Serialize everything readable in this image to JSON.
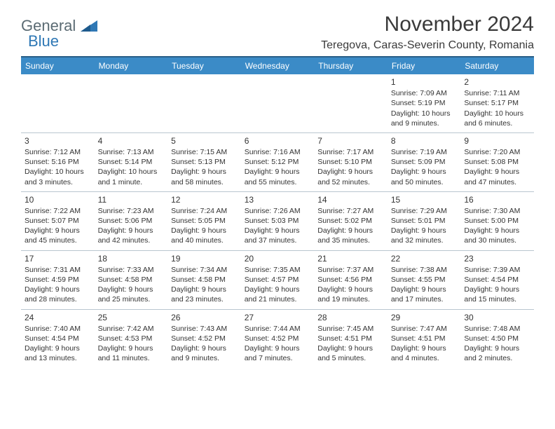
{
  "logo": {
    "general": "General",
    "blue": "Blue"
  },
  "title": "November 2024",
  "location": "Teregova, Caras-Severin County, Romania",
  "colors": {
    "header_bg": "#3b8bc7",
    "header_border_top": "#2a5f88",
    "cell_border": "#b9c6cf",
    "text": "#333333",
    "logo_gray": "#5b6b73",
    "logo_blue": "#2f78b5"
  },
  "day_labels": [
    "Sunday",
    "Monday",
    "Tuesday",
    "Wednesday",
    "Thursday",
    "Friday",
    "Saturday"
  ],
  "weeks": [
    [
      null,
      null,
      null,
      null,
      null,
      {
        "n": "1",
        "sr": "Sunrise: 7:09 AM",
        "ss": "Sunset: 5:19 PM",
        "dl1": "Daylight: 10 hours",
        "dl2": "and 9 minutes."
      },
      {
        "n": "2",
        "sr": "Sunrise: 7:11 AM",
        "ss": "Sunset: 5:17 PM",
        "dl1": "Daylight: 10 hours",
        "dl2": "and 6 minutes."
      }
    ],
    [
      {
        "n": "3",
        "sr": "Sunrise: 7:12 AM",
        "ss": "Sunset: 5:16 PM",
        "dl1": "Daylight: 10 hours",
        "dl2": "and 3 minutes."
      },
      {
        "n": "4",
        "sr": "Sunrise: 7:13 AM",
        "ss": "Sunset: 5:14 PM",
        "dl1": "Daylight: 10 hours",
        "dl2": "and 1 minute."
      },
      {
        "n": "5",
        "sr": "Sunrise: 7:15 AM",
        "ss": "Sunset: 5:13 PM",
        "dl1": "Daylight: 9 hours",
        "dl2": "and 58 minutes."
      },
      {
        "n": "6",
        "sr": "Sunrise: 7:16 AM",
        "ss": "Sunset: 5:12 PM",
        "dl1": "Daylight: 9 hours",
        "dl2": "and 55 minutes."
      },
      {
        "n": "7",
        "sr": "Sunrise: 7:17 AM",
        "ss": "Sunset: 5:10 PM",
        "dl1": "Daylight: 9 hours",
        "dl2": "and 52 minutes."
      },
      {
        "n": "8",
        "sr": "Sunrise: 7:19 AM",
        "ss": "Sunset: 5:09 PM",
        "dl1": "Daylight: 9 hours",
        "dl2": "and 50 minutes."
      },
      {
        "n": "9",
        "sr": "Sunrise: 7:20 AM",
        "ss": "Sunset: 5:08 PM",
        "dl1": "Daylight: 9 hours",
        "dl2": "and 47 minutes."
      }
    ],
    [
      {
        "n": "10",
        "sr": "Sunrise: 7:22 AM",
        "ss": "Sunset: 5:07 PM",
        "dl1": "Daylight: 9 hours",
        "dl2": "and 45 minutes."
      },
      {
        "n": "11",
        "sr": "Sunrise: 7:23 AM",
        "ss": "Sunset: 5:06 PM",
        "dl1": "Daylight: 9 hours",
        "dl2": "and 42 minutes."
      },
      {
        "n": "12",
        "sr": "Sunrise: 7:24 AM",
        "ss": "Sunset: 5:05 PM",
        "dl1": "Daylight: 9 hours",
        "dl2": "and 40 minutes."
      },
      {
        "n": "13",
        "sr": "Sunrise: 7:26 AM",
        "ss": "Sunset: 5:03 PM",
        "dl1": "Daylight: 9 hours",
        "dl2": "and 37 minutes."
      },
      {
        "n": "14",
        "sr": "Sunrise: 7:27 AM",
        "ss": "Sunset: 5:02 PM",
        "dl1": "Daylight: 9 hours",
        "dl2": "and 35 minutes."
      },
      {
        "n": "15",
        "sr": "Sunrise: 7:29 AM",
        "ss": "Sunset: 5:01 PM",
        "dl1": "Daylight: 9 hours",
        "dl2": "and 32 minutes."
      },
      {
        "n": "16",
        "sr": "Sunrise: 7:30 AM",
        "ss": "Sunset: 5:00 PM",
        "dl1": "Daylight: 9 hours",
        "dl2": "and 30 minutes."
      }
    ],
    [
      {
        "n": "17",
        "sr": "Sunrise: 7:31 AM",
        "ss": "Sunset: 4:59 PM",
        "dl1": "Daylight: 9 hours",
        "dl2": "and 28 minutes."
      },
      {
        "n": "18",
        "sr": "Sunrise: 7:33 AM",
        "ss": "Sunset: 4:58 PM",
        "dl1": "Daylight: 9 hours",
        "dl2": "and 25 minutes."
      },
      {
        "n": "19",
        "sr": "Sunrise: 7:34 AM",
        "ss": "Sunset: 4:58 PM",
        "dl1": "Daylight: 9 hours",
        "dl2": "and 23 minutes."
      },
      {
        "n": "20",
        "sr": "Sunrise: 7:35 AM",
        "ss": "Sunset: 4:57 PM",
        "dl1": "Daylight: 9 hours",
        "dl2": "and 21 minutes."
      },
      {
        "n": "21",
        "sr": "Sunrise: 7:37 AM",
        "ss": "Sunset: 4:56 PM",
        "dl1": "Daylight: 9 hours",
        "dl2": "and 19 minutes."
      },
      {
        "n": "22",
        "sr": "Sunrise: 7:38 AM",
        "ss": "Sunset: 4:55 PM",
        "dl1": "Daylight: 9 hours",
        "dl2": "and 17 minutes."
      },
      {
        "n": "23",
        "sr": "Sunrise: 7:39 AM",
        "ss": "Sunset: 4:54 PM",
        "dl1": "Daylight: 9 hours",
        "dl2": "and 15 minutes."
      }
    ],
    [
      {
        "n": "24",
        "sr": "Sunrise: 7:40 AM",
        "ss": "Sunset: 4:54 PM",
        "dl1": "Daylight: 9 hours",
        "dl2": "and 13 minutes."
      },
      {
        "n": "25",
        "sr": "Sunrise: 7:42 AM",
        "ss": "Sunset: 4:53 PM",
        "dl1": "Daylight: 9 hours",
        "dl2": "and 11 minutes."
      },
      {
        "n": "26",
        "sr": "Sunrise: 7:43 AM",
        "ss": "Sunset: 4:52 PM",
        "dl1": "Daylight: 9 hours",
        "dl2": "and 9 minutes."
      },
      {
        "n": "27",
        "sr": "Sunrise: 7:44 AM",
        "ss": "Sunset: 4:52 PM",
        "dl1": "Daylight: 9 hours",
        "dl2": "and 7 minutes."
      },
      {
        "n": "28",
        "sr": "Sunrise: 7:45 AM",
        "ss": "Sunset: 4:51 PM",
        "dl1": "Daylight: 9 hours",
        "dl2": "and 5 minutes."
      },
      {
        "n": "29",
        "sr": "Sunrise: 7:47 AM",
        "ss": "Sunset: 4:51 PM",
        "dl1": "Daylight: 9 hours",
        "dl2": "and 4 minutes."
      },
      {
        "n": "30",
        "sr": "Sunrise: 7:48 AM",
        "ss": "Sunset: 4:50 PM",
        "dl1": "Daylight: 9 hours",
        "dl2": "and 2 minutes."
      }
    ]
  ]
}
